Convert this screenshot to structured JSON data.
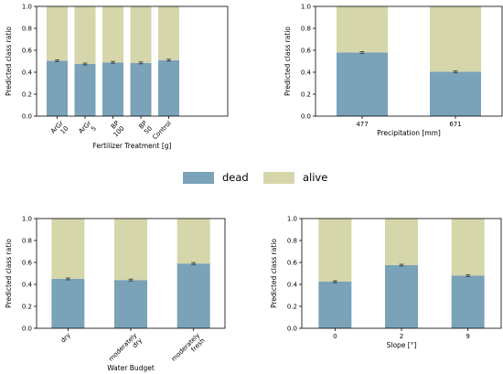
{
  "colors": {
    "dead": "#7aa2b8",
    "alive": "#d5d6aa",
    "errorbar": "#333333"
  },
  "legend": {
    "position": "center",
    "items": [
      {
        "key": "dead",
        "label": "dead"
      },
      {
        "key": "alive",
        "label": "alive"
      }
    ]
  },
  "chart_data": [
    {
      "type": "bar",
      "stacked": true,
      "xlabel": "Fertilizer Treatment [g]",
      "ylabel": "Predicted class ratio",
      "ylim": [
        0,
        1
      ],
      "yticks": [
        "0.0",
        "0.2",
        "0.4",
        "0.6",
        "0.8",
        "1.0"
      ],
      "xtick_rotation": 45,
      "categories": [
        [
          "ArGr",
          "10"
        ],
        [
          "ArGr",
          "5"
        ],
        [
          "BP",
          "100"
        ],
        [
          "BP",
          "50"
        ],
        [
          "Control"
        ]
      ],
      "series": [
        {
          "name": "dead",
          "values": [
            0.505,
            0.475,
            0.49,
            0.485,
            0.51
          ]
        },
        {
          "name": "alive",
          "values": [
            0.495,
            0.525,
            0.51,
            0.515,
            0.49
          ]
        }
      ]
    },
    {
      "type": "bar",
      "stacked": true,
      "xlabel": "Precipitation [mm]",
      "ylabel": "Predicted class ratio",
      "ylim": [
        0,
        1
      ],
      "yticks": [
        "0.0",
        "0.2",
        "0.4",
        "0.6",
        "0.8",
        "1.0"
      ],
      "xtick_rotation": 0,
      "categories": [
        [
          "477"
        ],
        [
          "671"
        ]
      ],
      "series": [
        {
          "name": "dead",
          "values": [
            0.58,
            0.405
          ]
        },
        {
          "name": "alive",
          "values": [
            0.42,
            0.595
          ]
        }
      ]
    },
    {
      "type": "bar",
      "stacked": true,
      "xlabel": "Water Budget",
      "ylabel": "Predicted class ratio",
      "ylim": [
        0,
        1
      ],
      "yticks": [
        "0.0",
        "0.2",
        "0.4",
        "0.6",
        "0.8",
        "1.0"
      ],
      "xtick_rotation": 45,
      "categories": [
        [
          "dry"
        ],
        [
          "moderately",
          "dry"
        ],
        [
          "moderately",
          "fresh"
        ]
      ],
      "series": [
        {
          "name": "dead",
          "values": [
            0.45,
            0.44,
            0.59
          ]
        },
        {
          "name": "alive",
          "values": [
            0.55,
            0.56,
            0.41
          ]
        }
      ]
    },
    {
      "type": "bar",
      "stacked": true,
      "xlabel": "Slope [°]",
      "ylabel": "Predicted class ratio",
      "ylim": [
        0,
        1
      ],
      "yticks": [
        "0.0",
        "0.2",
        "0.4",
        "0.6",
        "0.8",
        "1.0"
      ],
      "xtick_rotation": 0,
      "categories": [
        [
          "0"
        ],
        [
          "2"
        ],
        [
          "9"
        ]
      ],
      "series": [
        {
          "name": "dead",
          "values": [
            0.425,
            0.575,
            0.48
          ]
        },
        {
          "name": "alive",
          "values": [
            0.575,
            0.425,
            0.52
          ]
        }
      ]
    }
  ]
}
